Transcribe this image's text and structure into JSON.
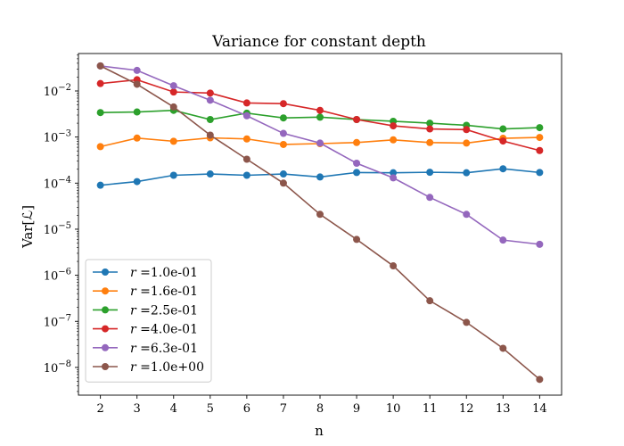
{
  "chart_data": {
    "type": "line",
    "title": "Variance for constant depth",
    "xlabel": "n",
    "ylabel": "Var[ℒ]",
    "yscale": "log",
    "x": [
      2,
      3,
      4,
      5,
      6,
      7,
      8,
      9,
      10,
      11,
      12,
      13,
      14
    ],
    "xlim": [
      1.4,
      14.6
    ],
    "ylim": [
      2.5e-09,
      0.065
    ],
    "yticks": [
      {
        "value": 1e-08,
        "base": "10",
        "exp": "−8"
      },
      {
        "value": 1e-07,
        "base": "10",
        "exp": "−7"
      },
      {
        "value": 1e-06,
        "base": "10",
        "exp": "−6"
      },
      {
        "value": 1e-05,
        "base": "10",
        "exp": "−5"
      },
      {
        "value": 0.0001,
        "base": "10",
        "exp": "−4"
      },
      {
        "value": 0.001,
        "base": "10",
        "exp": "−3"
      },
      {
        "value": 0.01,
        "base": "10",
        "exp": "−2"
      }
    ],
    "grid": false,
    "legend_position": "lower-left",
    "series": [
      {
        "name": "1.0e-01",
        "color": "#1f77b4",
        "values": [
          9e-05,
          0.000108,
          0.000148,
          0.000158,
          0.000148,
          0.000158,
          0.000136,
          0.00017,
          0.000168,
          0.000172,
          0.000168,
          0.000205,
          0.00017
        ]
      },
      {
        "name": "1.6e-01",
        "color": "#ff7f0e",
        "values": [
          0.00062,
          0.00095,
          0.00081,
          0.00096,
          0.00091,
          0.00069,
          0.00072,
          0.00076,
          0.00087,
          0.00076,
          0.00074,
          0.00094,
          0.00098
        ]
      },
      {
        "name": "2.5e-01",
        "color": "#2ca02c",
        "values": [
          0.0034,
          0.0035,
          0.0038,
          0.0024,
          0.0033,
          0.0026,
          0.0027,
          0.0024,
          0.0022,
          0.002,
          0.0018,
          0.0015,
          0.0016
        ]
      },
      {
        "name": "4.0e-01",
        "color": "#d62728",
        "values": [
          0.0145,
          0.0175,
          0.0095,
          0.009,
          0.0055,
          0.0053,
          0.0038,
          0.0024,
          0.00175,
          0.0015,
          0.00145,
          0.00082,
          0.00051
        ]
      },
      {
        "name": "6.3e-01",
        "color": "#9467bd",
        "values": [
          0.035,
          0.028,
          0.013,
          0.0063,
          0.0029,
          0.0012,
          0.00074,
          0.00027,
          0.00013,
          4.9e-05,
          2.1e-05,
          5.8e-06,
          4.7e-06
        ]
      },
      {
        "name": "1.0e+00",
        "color": "#8c564b",
        "values": [
          0.035,
          0.014,
          0.0045,
          0.0011,
          0.00033,
          0.0001,
          2.1e-05,
          6e-06,
          1.6e-06,
          2.8e-07,
          9.5e-08,
          2.6e-08,
          5.5e-09
        ]
      }
    ],
    "legend_prefix": "r",
    "legend_equals": "="
  }
}
